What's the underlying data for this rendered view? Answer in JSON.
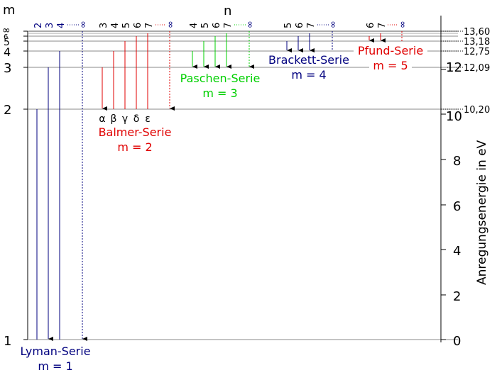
{
  "axes": {
    "m_label": "m",
    "n_label": "n",
    "right_axis_label": "Anregungsenergie in eV",
    "right_ticks": [
      "0",
      "2",
      "4",
      "6",
      "8",
      "10",
      "12"
    ],
    "left_levels": [
      "1",
      "2",
      "3",
      "4",
      "5",
      "6",
      "∞"
    ]
  },
  "energy_labels": [
    "13,60",
    "13,18",
    "12,75",
    "12,09",
    "10,20"
  ],
  "series": {
    "lyman": {
      "name": "Lyman-Serie",
      "m_text": "m = 1",
      "color": "#00007f",
      "n_labels": [
        "2",
        "3",
        "4",
        "∞"
      ]
    },
    "balmer": {
      "name": "Balmer-Serie",
      "m_text": "m = 2",
      "color": "#e00000",
      "n_labels": [
        "3",
        "4",
        "5",
        "6",
        "7",
        "∞"
      ],
      "greek": [
        "α",
        "β",
        "γ",
        "δ",
        "ε"
      ]
    },
    "paschen": {
      "name": "Paschen-Serie",
      "m_text": "m = 3",
      "color": "#00d000",
      "n_labels": [
        "4",
        "5",
        "6",
        "7",
        "∞"
      ]
    },
    "brackett": {
      "name": "Brackett-Serie",
      "m_text": "m = 4",
      "color": "#00007f",
      "n_labels": [
        "5",
        "6",
        "7",
        "∞"
      ]
    },
    "pfund": {
      "name": "Pfund-Serie",
      "m_text": "m = 5",
      "color": "#e00000",
      "n_labels": [
        "6",
        "7",
        "∞"
      ]
    }
  }
}
